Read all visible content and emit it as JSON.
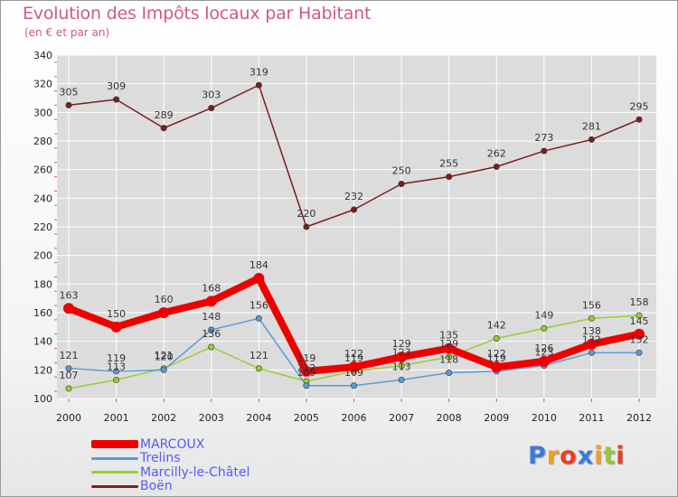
{
  "chart_data": {
    "type": "line",
    "title": "Evolution des Impôts locaux par Habitant",
    "subtitle": "(en € et par an)",
    "xlabel": "",
    "ylabel": "",
    "ylim": [
      100,
      340
    ],
    "yticks": [
      100,
      120,
      140,
      160,
      180,
      200,
      220,
      240,
      260,
      280,
      300,
      320,
      340
    ],
    "grid": true,
    "legend_position": "bottom-left",
    "categories": [
      "2000",
      "2001",
      "2002",
      "2003",
      "2004",
      "2005",
      "2006",
      "2007",
      "2008",
      "2009",
      "2010",
      "2011",
      "2012"
    ],
    "series": [
      {
        "name": "MARCOUX",
        "color": "#ee0000",
        "values": [
          163,
          150,
          160,
          168,
          184,
          119,
          122,
          129,
          135,
          122,
          126,
          138,
          145
        ]
      },
      {
        "name": "Trelins",
        "color": "#5b9bd5",
        "values": [
          121,
          119,
          120,
          148,
          156,
          109,
          109,
          113,
          118,
          119,
          123,
          132,
          132
        ]
      },
      {
        "name": "Marcilly-le-Châtel",
        "color": "#9acd32",
        "values": [
          107,
          113,
          121,
          136,
          121,
          112,
          119,
          123,
          129,
          142,
          149,
          156,
          158
        ]
      },
      {
        "name": "Boën",
        "color": "#7a1e1e",
        "values": [
          305,
          309,
          289,
          303,
          319,
          220,
          232,
          250,
          255,
          262,
          273,
          281,
          295
        ]
      }
    ]
  },
  "logo": {
    "text": "Proxiti",
    "colors": [
      "#3d7bd8",
      "#f0a020",
      "#e84020",
      "#3d7bd8",
      "#f0a020",
      "#9ac830",
      "#e84020"
    ]
  }
}
